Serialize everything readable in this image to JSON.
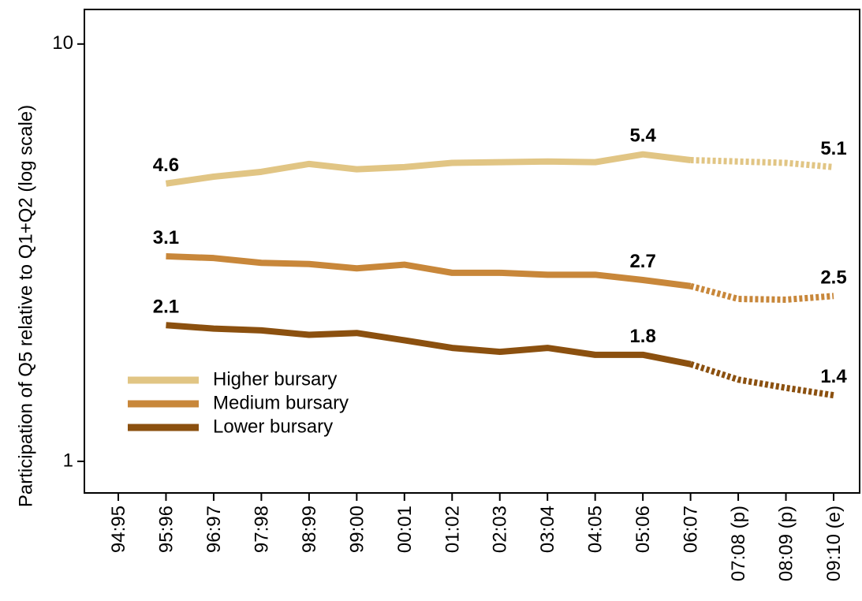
{
  "chart_data": {
    "type": "line",
    "ylabel": "Participation of Q5 relative to Q1+Q2 (log scale)",
    "categories": [
      "94:95",
      "95:96",
      "96:97",
      "97:98",
      "98:99",
      "99:00",
      "00:01",
      "01:02",
      "02:03",
      "03:04",
      "04:05",
      "05:06",
      "06:07",
      "07:08 (p)",
      "08:09 (p)",
      "09:10 (e)"
    ],
    "series": [
      {
        "name": "Higher bursary",
        "color": "#e1c584",
        "values": [
          null,
          4.63,
          4.81,
          4.94,
          5.16,
          5.01,
          5.07,
          5.19,
          5.21,
          5.23,
          5.21,
          5.44,
          5.27,
          5.23,
          5.19,
          5.07
        ],
        "value_labels": [
          null,
          "4.6",
          null,
          null,
          null,
          null,
          null,
          null,
          null,
          null,
          null,
          "5.4",
          null,
          null,
          null,
          "5.1"
        ]
      },
      {
        "name": "Medium bursary",
        "color": "#c8873a",
        "values": [
          null,
          3.1,
          3.07,
          2.99,
          2.97,
          2.9,
          2.96,
          2.83,
          2.83,
          2.8,
          2.8,
          2.72,
          2.63,
          2.45,
          2.44,
          2.49
        ],
        "value_labels": [
          null,
          "3.1",
          null,
          null,
          null,
          null,
          null,
          null,
          null,
          null,
          null,
          "2.7",
          null,
          null,
          null,
          "2.5"
        ]
      },
      {
        "name": "Lower bursary",
        "color": "#8b500f",
        "values": [
          null,
          2.12,
          2.08,
          2.06,
          2.01,
          2.03,
          1.95,
          1.87,
          1.83,
          1.87,
          1.8,
          1.8,
          1.71,
          1.57,
          1.5,
          1.44
        ],
        "value_labels": [
          null,
          "2.1",
          null,
          null,
          null,
          null,
          null,
          null,
          null,
          null,
          null,
          "1.8",
          null,
          null,
          null,
          "1.4"
        ]
      }
    ],
    "ylim": [
      0.84,
      12.1
    ],
    "yticks": [
      1,
      10
    ],
    "log_y": true,
    "grid": false,
    "legend": "center left"
  }
}
